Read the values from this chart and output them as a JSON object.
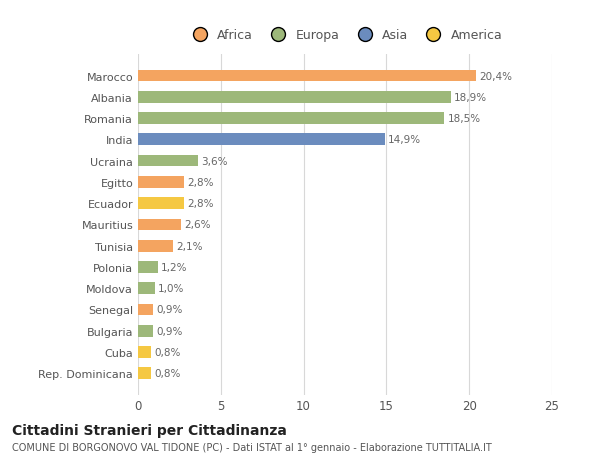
{
  "countries": [
    "Rep. Dominicana",
    "Cuba",
    "Bulgaria",
    "Senegal",
    "Moldova",
    "Polonia",
    "Tunisia",
    "Mauritius",
    "Ecuador",
    "Egitto",
    "Ucraina",
    "India",
    "Romania",
    "Albania",
    "Marocco"
  ],
  "values": [
    0.8,
    0.8,
    0.9,
    0.9,
    1.0,
    1.2,
    2.1,
    2.6,
    2.8,
    2.8,
    3.6,
    14.9,
    18.5,
    18.9,
    20.4
  ],
  "labels": [
    "0,8%",
    "0,8%",
    "0,9%",
    "0,9%",
    "1,0%",
    "1,2%",
    "2,1%",
    "2,6%",
    "2,8%",
    "2,8%",
    "3,6%",
    "14,9%",
    "18,5%",
    "18,9%",
    "20,4%"
  ],
  "bar_colors": [
    "#F5C842",
    "#F5C842",
    "#9DB87A",
    "#F4A460",
    "#9DB87A",
    "#9DB87A",
    "#F4A460",
    "#F4A460",
    "#F5C842",
    "#F4A460",
    "#9DB87A",
    "#6B8CBE",
    "#9DB87A",
    "#9DB87A",
    "#F4A460"
  ],
  "legend_colors": {
    "Africa": "#F4A460",
    "Europa": "#9DB87A",
    "Asia": "#6B8CBE",
    "America": "#F5C842"
  },
  "legend_order": [
    "Africa",
    "Europa",
    "Asia",
    "America"
  ],
  "title": "Cittadini Stranieri per Cittadinanza",
  "subtitle": "COMUNE DI BORGONOVO VAL TIDONE (PC) - Dati ISTAT al 1° gennaio - Elaborazione TUTTITALIA.IT",
  "xlim": [
    0,
    25
  ],
  "xticks": [
    0,
    5,
    10,
    15,
    20,
    25
  ],
  "background_color": "#ffffff",
  "grid_color": "#d8d8d8"
}
